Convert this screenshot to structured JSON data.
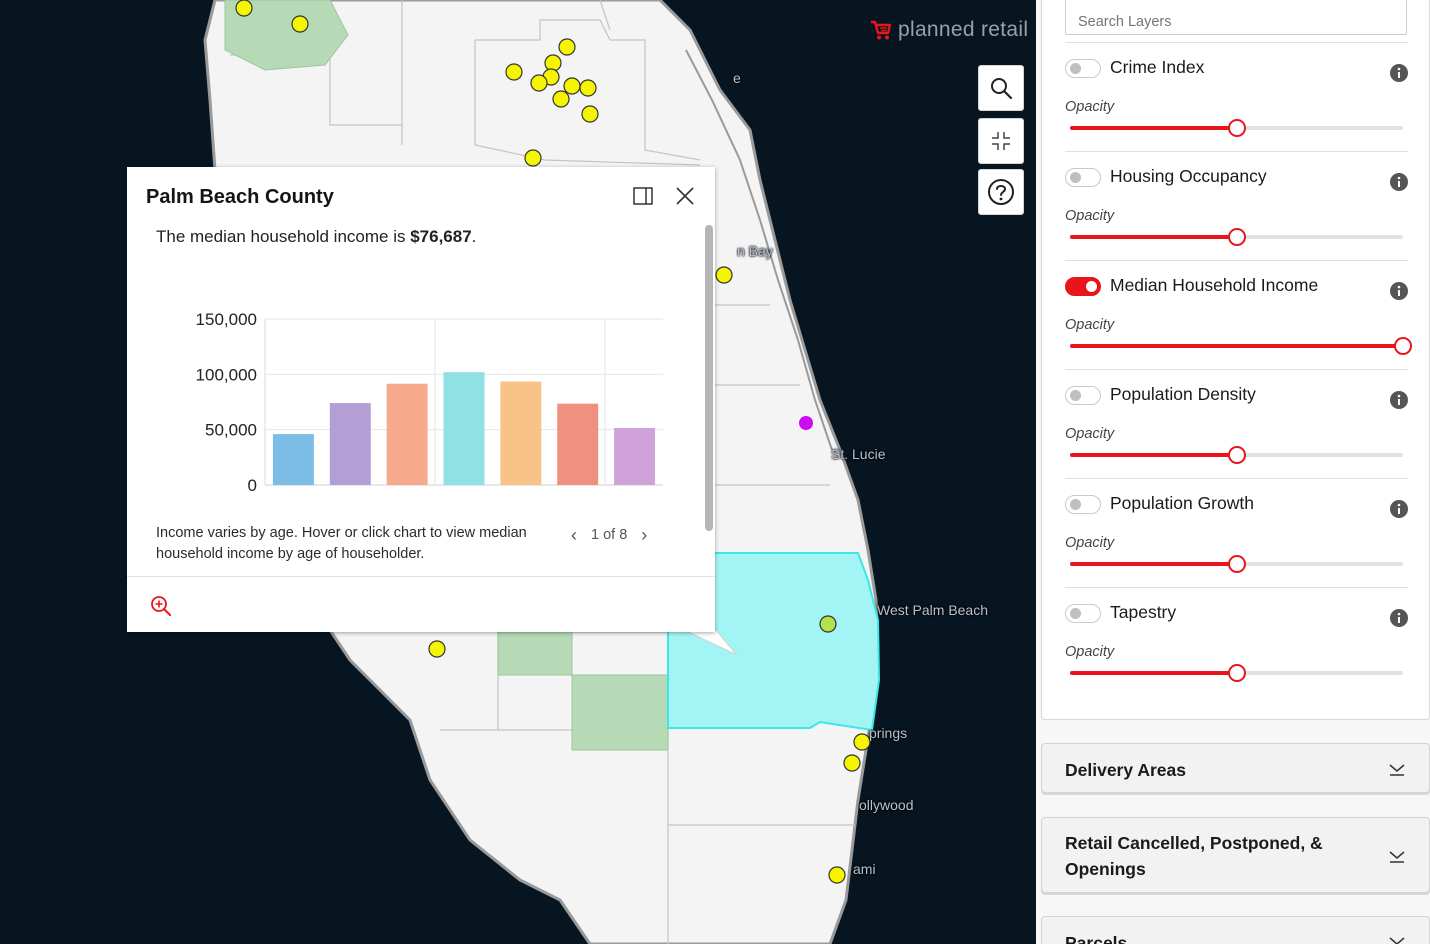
{
  "brand": {
    "name": "planned retail",
    "accent": "#e8161b"
  },
  "map": {
    "city_labels": [
      {
        "id": "palm-bay",
        "text": "n Bay"
      },
      {
        "id": "st-lucie",
        "text": "St. Lucie"
      },
      {
        "id": "west-palm-beach",
        "text": "West Palm Beach"
      },
      {
        "id": "springs",
        "text": "prings"
      },
      {
        "id": "hollywood",
        "text": "ollywood"
      },
      {
        "id": "miami",
        "text": "ami"
      },
      {
        "id": "melbourne-partial",
        "text": "e"
      }
    ],
    "buttons": {
      "search_icon": "search-icon",
      "collapse_icon": "collapse-icon",
      "help_icon": "help-icon"
    }
  },
  "popup": {
    "title": "Palm Beach County",
    "description_prefix": "The median household income is ",
    "description_value": "$76,687",
    "description_suffix": ".",
    "caption": "Income varies by age. Hover or click chart to view median household income by age of householder.",
    "pager": {
      "current": "1 of 8"
    },
    "icons": {
      "dock": "dock-icon",
      "close": "close-icon",
      "zoom": "zoom-in-icon"
    }
  },
  "chart_data": {
    "type": "bar",
    "categories": [
      "",
      "",
      "",
      "",
      "",
      "",
      ""
    ],
    "values": [
      46000,
      74000,
      91500,
      102000,
      93500,
      73500,
      51500
    ],
    "colors": [
      "#7bbde5",
      "#b39ed6",
      "#f7a98b",
      "#8fe1e3",
      "#f9c387",
      "#ef9080",
      "#cfa2d9"
    ],
    "yticks": [
      0,
      50000,
      100000,
      150000
    ],
    "ytick_labels": [
      "0",
      "50,000",
      "100,000",
      "150,000"
    ],
    "ylim": [
      0,
      150000
    ],
    "grid": true,
    "title": "",
    "xlabel": "",
    "ylabel": ""
  },
  "panel": {
    "search": {
      "placeholder": "Search Layers",
      "value": ""
    },
    "opacity_label": "Opacity",
    "layers": [
      {
        "name": "Crime Index",
        "enabled": false,
        "opacity": 0.5
      },
      {
        "name": "Housing Occupancy",
        "enabled": false,
        "opacity": 0.5
      },
      {
        "name": "Median Household Income",
        "enabled": true,
        "opacity": 1.0
      },
      {
        "name": "Population Density",
        "enabled": false,
        "opacity": 0.5
      },
      {
        "name": "Population Growth",
        "enabled": false,
        "opacity": 0.5
      },
      {
        "name": "Tapestry",
        "enabled": false,
        "opacity": 0.5
      }
    ],
    "sections": [
      {
        "title": "Delivery Areas"
      },
      {
        "title": "Retail Cancelled, Postponed, & Openings"
      },
      {
        "title": "Parcels"
      }
    ]
  }
}
